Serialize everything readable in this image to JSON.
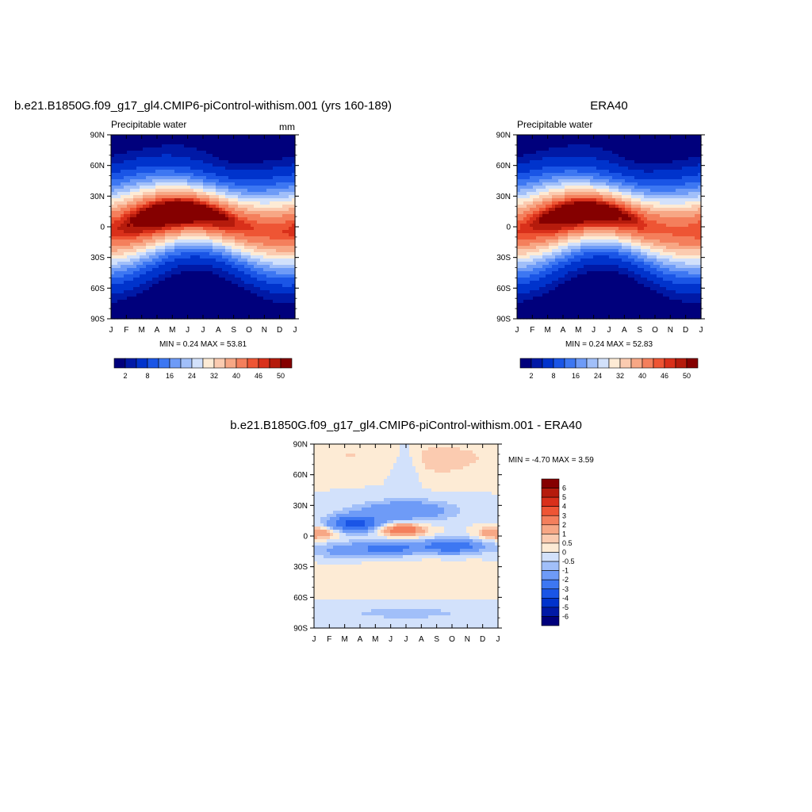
{
  "colors": {
    "pw_scale": [
      "#00007c",
      "#0019a6",
      "#0033cc",
      "#1a55e6",
      "#3d77f2",
      "#6e9bf7",
      "#a1bff9",
      "#d2e1fb",
      "#fdebd5",
      "#fbcbb0",
      "#f7a785",
      "#f47f5c",
      "#ee5534",
      "#d9301a",
      "#b51b0c",
      "#850000"
    ],
    "diff_scale": [
      "#00007c",
      "#0019a6",
      "#0033cc",
      "#1a55e6",
      "#3d77f2",
      "#6e9bf7",
      "#a1bff9",
      "#d2e1fb",
      "#fdebd5",
      "#fbcbb0",
      "#f7a785",
      "#f47f5c",
      "#ee5534",
      "#d9301a",
      "#b51b0c",
      "#850000"
    ]
  },
  "panels": {
    "model": {
      "title": "b.e21.B1850G.f09_g17_gl4.CMIP6-piControl-withism.001 (yrs 160-189)",
      "left_label": "Precipitable water",
      "right_label": "mm",
      "stats": "MIN =   0.24 MAX =  53.81"
    },
    "obs": {
      "title": "ERA40",
      "left_label": "Precipitable water",
      "stats": "MIN =   0.24 MAX =  52.83"
    },
    "diff": {
      "title": "b.e21.B1850G.f09_g17_gl4.CMIP6-piControl-withism.001 - ERA40",
      "stats": "MIN =  -4.70 MAX =   3.59"
    }
  },
  "chart_data": [
    {
      "type": "heatmap",
      "title": "b.e21.B1850G.f09_g17_gl4.CMIP6-piControl-withism.001 (yrs 160-189)",
      "subtitle_left": "Precipitable water",
      "units": "mm",
      "x_ticks": [
        "J",
        "F",
        "M",
        "A",
        "M",
        "J",
        "J",
        "A",
        "S",
        "O",
        "N",
        "D",
        "J"
      ],
      "y_ticks": [
        "90N",
        "60N",
        "30N",
        "0",
        "30S",
        "60S",
        "90S"
      ],
      "ylim": [
        -90,
        90
      ],
      "min": 0.24,
      "max": 53.81,
      "colorbar_labels": [
        "2",
        "8",
        "16",
        "24",
        "32",
        "40",
        "46",
        "50"
      ],
      "levels": [
        2,
        4,
        8,
        12,
        16,
        20,
        24,
        28,
        32,
        36,
        40,
        44,
        46,
        48,
        50
      ],
      "field": {
        "lat_center_base": 4,
        "lat_center_amp": 8,
        "peak_base": 49,
        "peak_amp": 4,
        "width_base": 18,
        "width_amp": 3,
        "south_floor": 1,
        "north_floor_base": 4,
        "north_floor_amp": 7
      }
    },
    {
      "type": "heatmap",
      "title": "ERA40",
      "subtitle_left": "Precipitable water",
      "x_ticks": [
        "J",
        "F",
        "M",
        "A",
        "M",
        "J",
        "J",
        "A",
        "S",
        "O",
        "N",
        "D",
        "J"
      ],
      "y_ticks": [
        "90N",
        "60N",
        "30N",
        "0",
        "30S",
        "60S",
        "90S"
      ],
      "ylim": [
        -90,
        90
      ],
      "min": 0.24,
      "max": 52.83,
      "colorbar_labels": [
        "2",
        "8",
        "16",
        "24",
        "32",
        "40",
        "46",
        "50"
      ],
      "levels": [
        2,
        4,
        8,
        12,
        16,
        20,
        24,
        28,
        32,
        36,
        40,
        44,
        46,
        48,
        50
      ],
      "field": {
        "lat_center_base": 4,
        "lat_center_amp": 8,
        "peak_base": 48,
        "peak_amp": 4,
        "width_base": 18,
        "width_amp": 3,
        "south_floor": 1,
        "north_floor_base": 4,
        "north_floor_amp": 7
      }
    },
    {
      "type": "heatmap",
      "title": "b.e21.B1850G.f09_g17_gl4.CMIP6-piControl-withism.001 - ERA40",
      "x_ticks": [
        "J",
        "F",
        "M",
        "A",
        "M",
        "J",
        "J",
        "A",
        "S",
        "O",
        "N",
        "D",
        "J"
      ],
      "y_ticks": [
        "90N",
        "60N",
        "30N",
        "0",
        "30S",
        "60S",
        "90S"
      ],
      "ylim": [
        -90,
        90
      ],
      "min": -4.7,
      "max": 3.59,
      "colorbar_labels": [
        "6",
        "5",
        "4",
        "3",
        "2",
        "1",
        "0.5",
        "0",
        "-0.5",
        "-1",
        "-2",
        "-3",
        "-4",
        "-5",
        "-6"
      ],
      "levels": [
        -6,
        -5,
        -4,
        -3,
        -2,
        -1,
        -0.5,
        0,
        0.5,
        1,
        2,
        3,
        4,
        5,
        6
      ]
    }
  ]
}
